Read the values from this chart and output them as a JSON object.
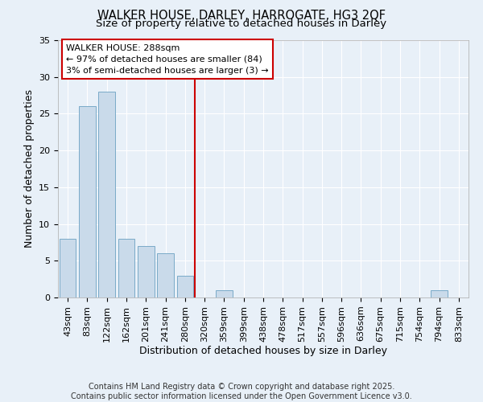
{
  "title1": "WALKER HOUSE, DARLEY, HARROGATE, HG3 2QF",
  "title2": "Size of property relative to detached houses in Darley",
  "xlabel": "Distribution of detached houses by size in Darley",
  "ylabel": "Number of detached properties",
  "categories": [
    "43sqm",
    "83sqm",
    "122sqm",
    "162sqm",
    "201sqm",
    "241sqm",
    "280sqm",
    "320sqm",
    "359sqm",
    "399sqm",
    "438sqm",
    "478sqm",
    "517sqm",
    "557sqm",
    "596sqm",
    "636sqm",
    "675sqm",
    "715sqm",
    "754sqm",
    "794sqm",
    "833sqm"
  ],
  "values": [
    8,
    26,
    28,
    8,
    7,
    6,
    3,
    0,
    1,
    0,
    0,
    0,
    0,
    0,
    0,
    0,
    0,
    0,
    0,
    1,
    0
  ],
  "bar_color": "#c9daea",
  "bar_edge_color": "#7aaac8",
  "bg_color": "#e8f0f8",
  "grid_color": "#ffffff",
  "vline_color": "#cc0000",
  "vline_pos": 6.5,
  "annotation_line1": "WALKER HOUSE: 288sqm",
  "annotation_line2": "← 97% of detached houses are smaller (84)",
  "annotation_line3": "3% of semi-detached houses are larger (3) →",
  "annotation_box_color": "#ffffff",
  "annotation_box_edge": "#cc0000",
  "ylim": [
    0,
    35
  ],
  "yticks": [
    0,
    5,
    10,
    15,
    20,
    25,
    30,
    35
  ],
  "footnote": "Contains HM Land Registry data © Crown copyright and database right 2025.\nContains public sector information licensed under the Open Government Licence v3.0.",
  "title1_fontsize": 10.5,
  "title2_fontsize": 9.5,
  "axis_label_fontsize": 9,
  "tick_fontsize": 8,
  "annotation_fontsize": 8,
  "footnote_fontsize": 7
}
